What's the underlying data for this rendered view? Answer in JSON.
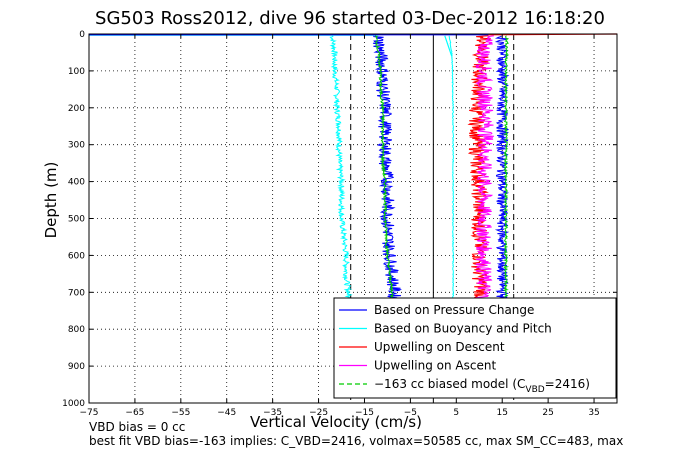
{
  "chart_data": {
    "type": "line",
    "title": "SG503 Ross2012, dive 96 started 03-Dec-2012 16:18:20",
    "xlabel": "Vertical Velocity (cm/s)",
    "ylabel": "Depth (m)",
    "xlim": [
      -75,
      40
    ],
    "ylim": [
      0,
      1000
    ],
    "y_reversed": true,
    "grid": true,
    "x_ticks": [
      -75,
      -65,
      -55,
      -45,
      -35,
      -25,
      -15,
      -5,
      5,
      15,
      25,
      35
    ],
    "y_ticks": [
      0,
      100,
      200,
      300,
      400,
      500,
      600,
      700,
      800,
      900,
      1000
    ],
    "legend_position": "bottom-right",
    "legend": [
      {
        "label": "Based on Pressure Change",
        "color": "#0000ff",
        "style": "solid"
      },
      {
        "label": "Based on Buoyancy and Pitch",
        "color": "#00ffff",
        "style": "solid"
      },
      {
        "label": "Upwelling on Descent",
        "color": "#ff0000",
        "style": "solid"
      },
      {
        "label": "Upwelling on Ascent",
        "color": "#ff00ff",
        "style": "solid"
      },
      {
        "label_main": "−163 cc biased model (C",
        "label_sub": "VBD",
        "label_tail": "=2416)",
        "color": "#00cc00",
        "style": "dashed"
      }
    ],
    "series": [
      {
        "name": "Based on Pressure Change",
        "color": "#0000ff",
        "depth": [
          5,
          50,
          100,
          150,
          200,
          250,
          300,
          350,
          400,
          450,
          500,
          550,
          600,
          650,
          700,
          715
        ],
        "descent": [
          -12,
          -11.5,
          -11,
          -11,
          -10.5,
          -10.5,
          -10.5,
          -10.5,
          -10,
          -10,
          -10,
          -9.8,
          -9.5,
          -9,
          -8.5,
          -8.5
        ],
        "ascent": [
          15,
          15,
          15,
          15,
          15,
          15,
          15,
          15,
          15,
          15,
          15,
          15,
          15,
          15,
          15,
          15
        ]
      },
      {
        "name": "Based on Buoyancy and Pitch",
        "color": "#00ffff",
        "depth": [
          5,
          50,
          100,
          150,
          200,
          250,
          300,
          350,
          400,
          450,
          500,
          550,
          600,
          650,
          700,
          715
        ],
        "descent": [
          -22,
          -21.5,
          -21.5,
          -21,
          -21,
          -20.5,
          -20.5,
          -20.5,
          -20,
          -20,
          -20,
          -19.5,
          -19,
          -19,
          -18.5,
          -18.5
        ],
        "ascent": [
          3.5,
          4,
          4.2,
          4.2,
          4.3,
          4.3,
          4.3,
          4.3,
          4.3,
          4.3,
          4.3,
          4.3,
          4.3,
          4.3,
          4.3,
          4.3
        ]
      },
      {
        "name": "Upwelling on Descent",
        "color": "#ff0000",
        "depth": [
          5,
          50,
          100,
          150,
          200,
          250,
          300,
          350,
          400,
          450,
          500,
          550,
          600,
          650,
          700,
          715
        ],
        "values": [
          11,
          10.5,
          10,
          10,
          9.5,
          9.5,
          9.5,
          9.5,
          10,
          10,
          10,
          10,
          10,
          10,
          10.5,
          10.5
        ]
      },
      {
        "name": "Upwelling on Ascent",
        "color": "#ff00ff",
        "depth": [
          5,
          50,
          100,
          150,
          200,
          250,
          300,
          350,
          400,
          450,
          500,
          550,
          600,
          650,
          700,
          715
        ],
        "values": [
          11.5,
          11,
          11,
          11,
          11.5,
          11.5,
          11.5,
          11,
          11,
          11,
          11,
          11,
          11,
          11,
          11,
          11
        ]
      },
      {
        "name": "−163 cc biased model",
        "color": "#00cc00",
        "depth": [
          5,
          50,
          100,
          150,
          200,
          250,
          300,
          350,
          400,
          450,
          500,
          550,
          600,
          650,
          700,
          715
        ],
        "descent": [
          -12.5,
          -12,
          -11.5,
          -11.5,
          -11,
          -11,
          -11,
          -11,
          -10.5,
          -10.5,
          -10.5,
          -10.2,
          -10,
          -9.5,
          -9,
          -9
        ],
        "ascent": [
          16,
          16,
          15.8,
          15.8,
          15.8,
          15.8,
          15.8,
          15.8,
          15.8,
          15.8,
          15.8,
          15.8,
          15.8,
          15.8,
          15.8,
          15.8
        ]
      }
    ],
    "reference_lines": [
      {
        "x": -18,
        "style": "dashed",
        "color": "#000000"
      },
      {
        "x": 17.5,
        "style": "dashed",
        "color": "#000000"
      },
      {
        "x": 0,
        "style": "solid",
        "color": "#000000"
      }
    ],
    "surface_lines": [
      {
        "color": "#00ffff",
        "x": [
          -75,
          -12
        ],
        "depth": [
          3,
          3
        ]
      },
      {
        "color": "#ff0000",
        "x": [
          12,
          40
        ],
        "depth": [
          2,
          0
        ]
      },
      {
        "color": "#0000ff",
        "x": [
          -75,
          12
        ],
        "depth": [
          2,
          2
        ]
      }
    ],
    "annotations": [
      "VBD bias = 0 cc",
      "best fit VBD bias=-163 implies: C_VBD=2416, volmax=50585 cc, max SM_CC=483, max"
    ]
  }
}
